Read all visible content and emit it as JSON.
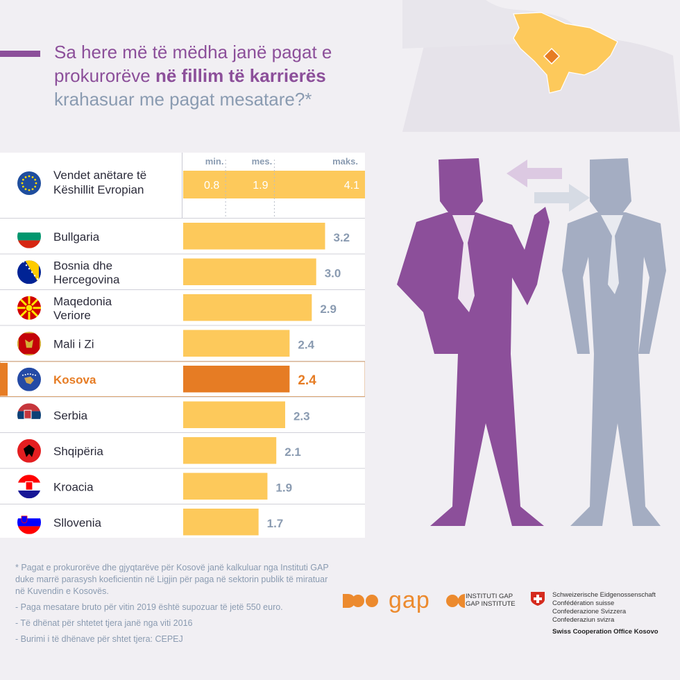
{
  "title": {
    "line1": "Sa here më të mëdha janë pagat e",
    "line2_plain": "prokurorëve ",
    "line2_bold": "në fillim të karrierës",
    "line3": "krahasuar me pagat mesatare?*"
  },
  "chart_data": {
    "type": "bar",
    "orientation": "horizontal",
    "header": {
      "min": "min.",
      "mes": "mes.",
      "maks": "maks."
    },
    "reference": {
      "label_lines": [
        "Vendet anëtare të",
        "Këshillit  Evropian"
      ],
      "min": 0.8,
      "mes": 1.9,
      "maks": 4.1,
      "min_label": "0.8",
      "mes_label": "1.9",
      "maks_label": "4.1"
    },
    "categories": [
      [
        "Bullgaria"
      ],
      [
        "Bosnia dhe",
        "Hercegovina"
      ],
      [
        "Maqedonia",
        "Veriore"
      ],
      [
        "Mali i Zi"
      ],
      [
        "Kosova"
      ],
      [
        "Serbia"
      ],
      [
        "Shqipëria"
      ],
      [
        "Kroacia"
      ],
      [
        "Sllovenia"
      ]
    ],
    "values": [
      3.2,
      3.0,
      2.9,
      2.4,
      2.4,
      2.3,
      2.1,
      1.9,
      1.7
    ],
    "value_labels": [
      "3.2",
      "3.0",
      "2.9",
      "2.4",
      "2.4",
      "2.3",
      "2.1",
      "1.9",
      "1.7"
    ],
    "highlight_index": 4,
    "flags": [
      "bulgaria-flag",
      "bosnia-flag",
      "north-macedonia-flag",
      "montenegro-flag",
      "kosovo-flag",
      "serbia-flag",
      "albania-flag",
      "croatia-flag",
      "slovenia-flag"
    ],
    "xlim": [
      0,
      4.1
    ],
    "colors": {
      "bar": "#fdc95b",
      "highlight": "#e67c24",
      "label": "#8a9bb1",
      "highlight_label": "#e67c24"
    }
  },
  "footnotes": [
    "* Pagat e prokurorëve dhe gjyqtarëve për Kosovë janë kalkuluar nga Instituti GAP duke marrë parasysh koeficientin në Ligjin për paga në sektorin publik të miratuar në Kuvendin e Kosovës.",
    "- Paga mesatare bruto për vitin 2019 është supozuar të jetë 550 euro.",
    "- Të dhënat për shtetet tjera janë nga viti 2016",
    "- Burimi i të dhënave për shtet tjera: CEPEJ"
  ],
  "logos": {
    "gap_word": "gap",
    "gap_line1": "INSTITUTI GAP",
    "gap_line2": "GAP INSTITUTE",
    "swiss_lines": [
      "Schweizerische Eidgenossenschaft",
      "Confédération suisse",
      "Confederazione Svizzera",
      "Confederaziun svizra"
    ],
    "swiss_office": "Swiss Cooperation Office Kosovo"
  },
  "colors": {
    "purple": "#8c4f9a",
    "grey": "#8a9bb1",
    "orange": "#e67c24",
    "yellow": "#fdc95b"
  }
}
